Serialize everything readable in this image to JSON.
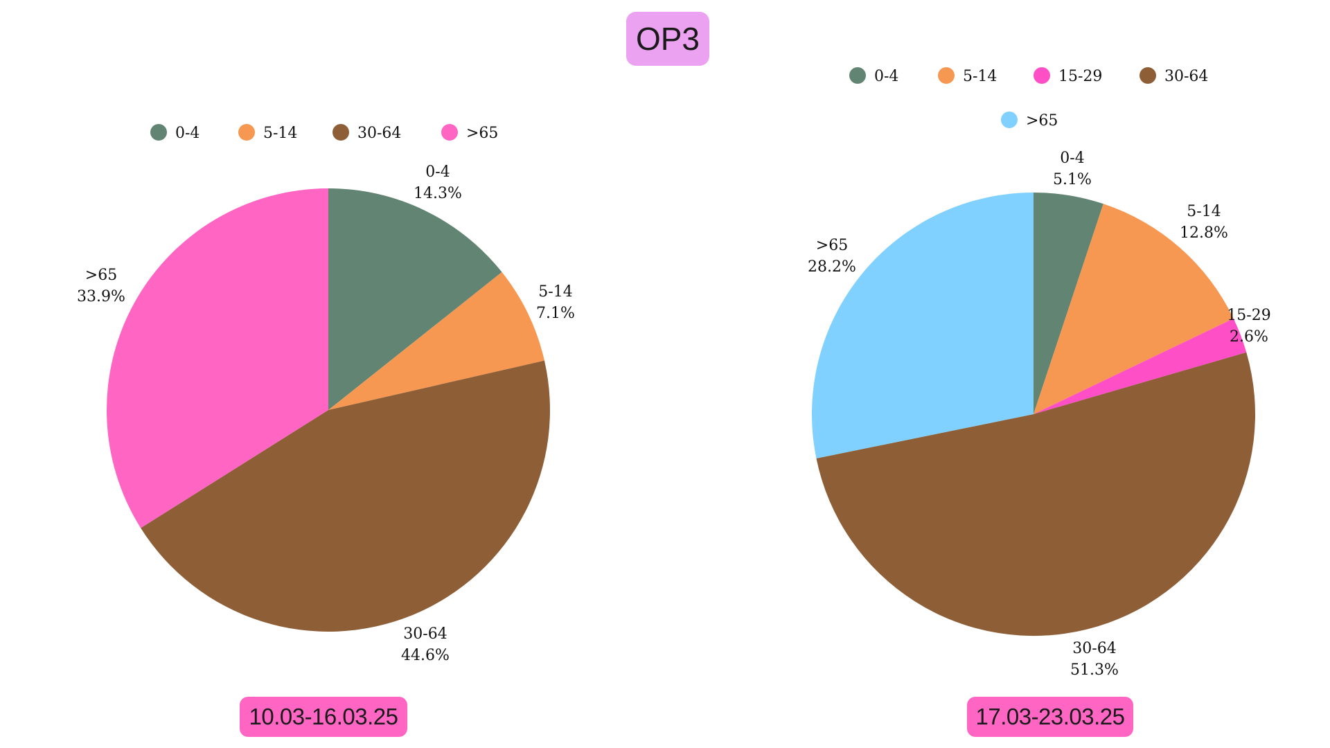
{
  "title": "OP3",
  "chart_data": [
    {
      "type": "pie",
      "date_label": "10.03-16.03.25",
      "legend": [
        "0-4",
        "5-14",
        "30-64",
        ">65"
      ],
      "slices": [
        {
          "label": "0-4",
          "value": 14.3,
          "display": "14.3%",
          "color": "#628473"
        },
        {
          "label": "5-14",
          "value": 7.1,
          "display": "7.1%",
          "color": "#f69852"
        },
        {
          "label": "30-64",
          "value": 44.6,
          "display": "44.6%",
          "color": "#8e5e37"
        },
        {
          "label": ">65",
          "value": 33.9,
          "display": "33.9%",
          "color": "#ff66c4"
        }
      ]
    },
    {
      "type": "pie",
      "date_label": "17.03-23.03.25",
      "legend": [
        "0-4",
        "5-14",
        "15-29",
        "30-64",
        ">65"
      ],
      "slices": [
        {
          "label": "0-4",
          "value": 5.1,
          "display": "5.1%",
          "color": "#628473"
        },
        {
          "label": "5-14",
          "value": 12.8,
          "display": "12.8%",
          "color": "#f69852"
        },
        {
          "label": "15-29",
          "value": 2.6,
          "display": "2.6%",
          "color": "#ff4fc7"
        },
        {
          "label": "30-64",
          "value": 51.3,
          "display": "51.3%",
          "color": "#8e5e37"
        },
        {
          "label": ">65",
          "value": 28.2,
          "display": "28.2%",
          "color": "#80d1ff"
        }
      ]
    }
  ]
}
